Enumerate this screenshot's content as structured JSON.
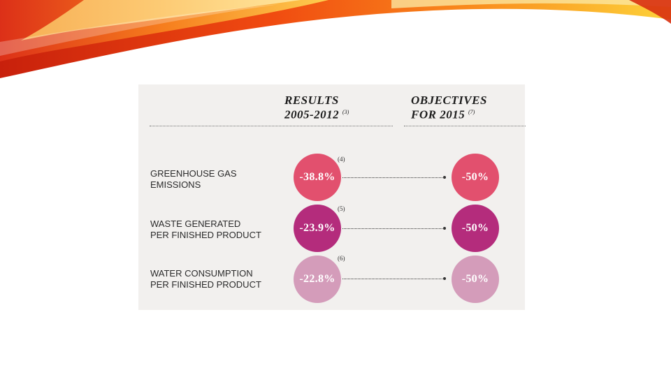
{
  "header": {
    "results_title": "RESULTS",
    "results_years": "2005-2012",
    "results_note": "(3)",
    "objectives_title": "OBJECTIVES",
    "objectives_years": "FOR 2015",
    "objectives_note": "(7)"
  },
  "rows": [
    {
      "label_line1": "GREENHOUSE GAS",
      "label_line2": "EMISSIONS",
      "result": "-38.8%",
      "note": "(4)",
      "objective": "-50%",
      "color": "#e2506e"
    },
    {
      "label_line1": "WASTE GENERATED",
      "label_line2": "PER FINISHED PRODUCT",
      "result": "-23.9%",
      "note": "(5)",
      "objective": "-50%",
      "color": "#b42c7c"
    },
    {
      "label_line1": "WATER CONSUMPTION",
      "label_line2": "PER FINISHED PRODUCT",
      "result": "-22.8%",
      "note": "(6)",
      "objective": "-50%",
      "color": "#d49cba"
    }
  ]
}
